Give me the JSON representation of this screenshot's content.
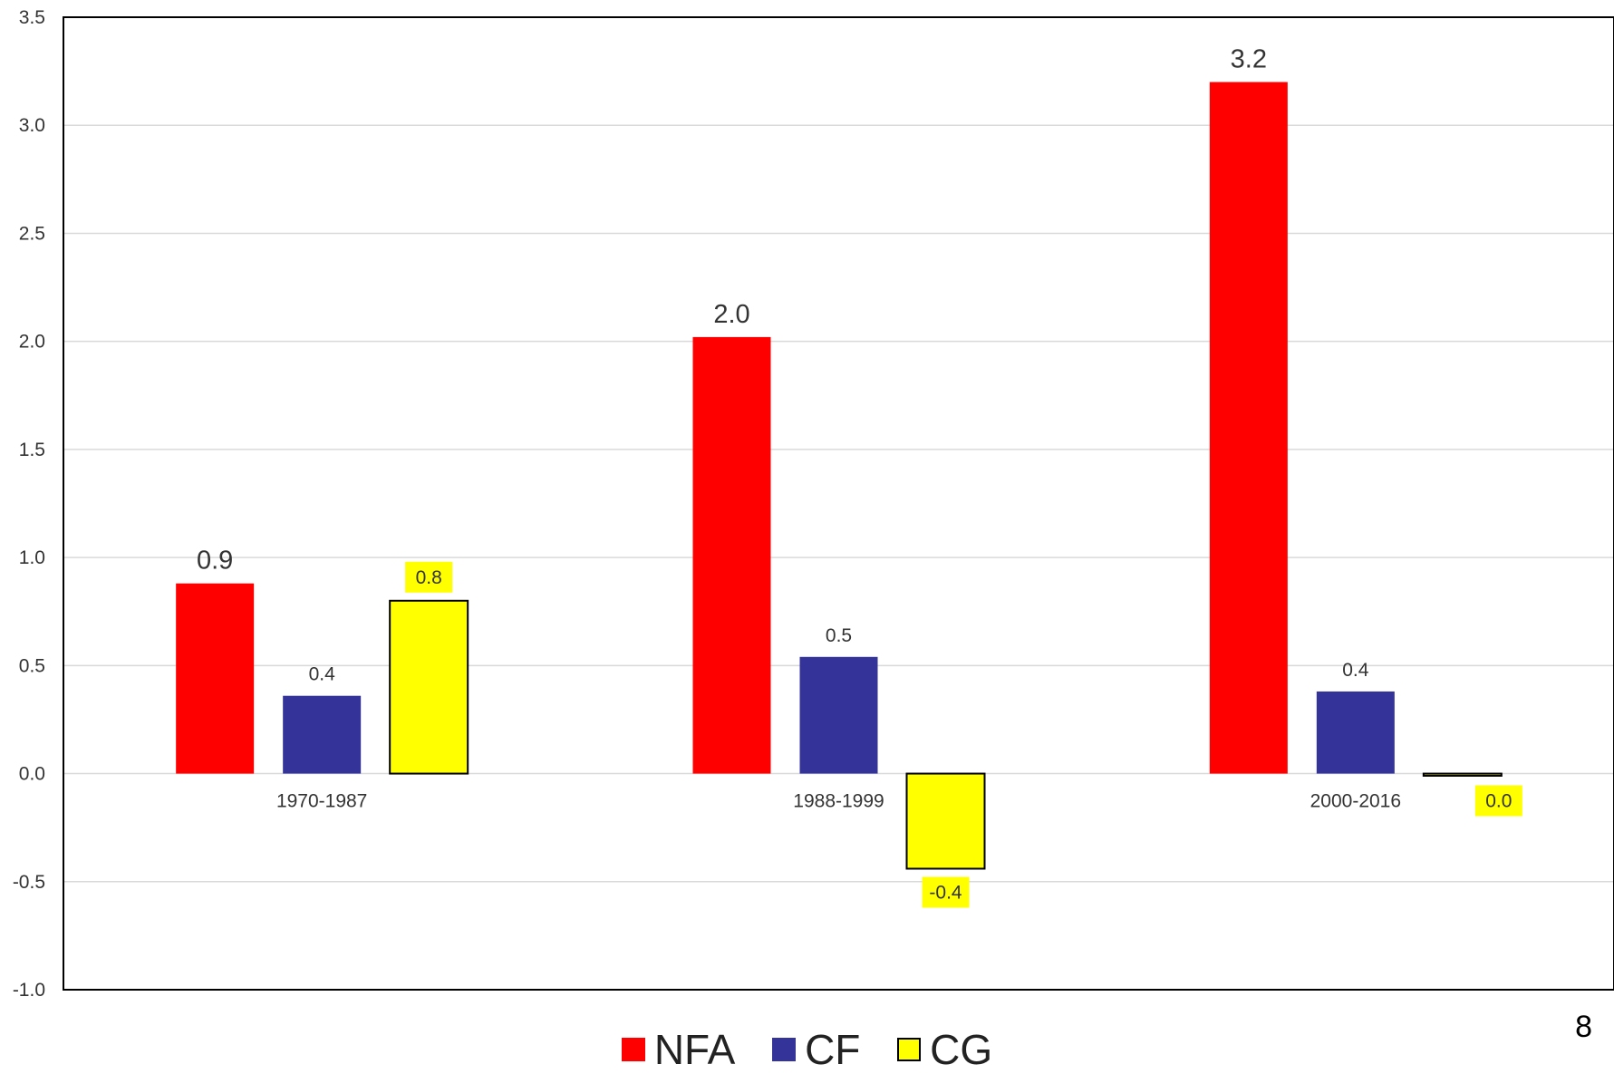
{
  "chart_data": {
    "type": "bar",
    "title": "",
    "xlabel": "",
    "ylabel": "",
    "categories": [
      "1970-1987",
      "1988-1999",
      "2000-2016"
    ],
    "series": [
      {
        "name": "NFA",
        "values": [
          0.88,
          2.02,
          3.2
        ],
        "labels": [
          "0.9",
          "2.0",
          "3.2"
        ],
        "color": "#FF0000"
      },
      {
        "name": "CF",
        "values": [
          0.36,
          0.54,
          0.38
        ],
        "labels": [
          "0.4",
          "0.5",
          "0.4"
        ],
        "color": "#333399"
      },
      {
        "name": "CG",
        "values": [
          0.8,
          -0.44,
          -0.01
        ],
        "labels": [
          "0.8",
          "-0.4",
          "0.0"
        ],
        "color": "#FFFF00"
      }
    ],
    "ylim": [
      -1.0,
      3.5
    ],
    "yticks": [
      "-1.0",
      "-0.5",
      "0.0",
      "0.5",
      "1.0",
      "1.5",
      "2.0",
      "2.5",
      "3.0",
      "3.5"
    ],
    "grid": true,
    "legend_position": "bottom"
  },
  "page_number": "8"
}
